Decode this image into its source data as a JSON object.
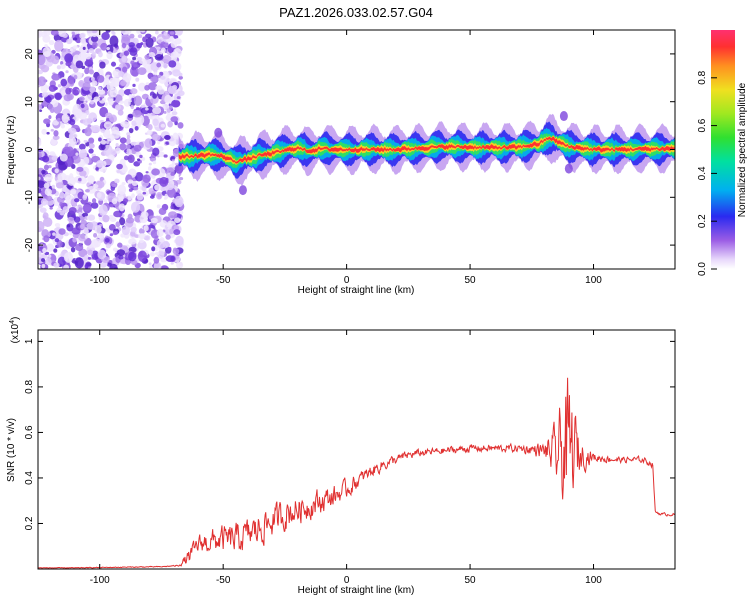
{
  "figure": {
    "title": "PAZ1.2026.033.02.57.G04"
  },
  "chart_data": [
    {
      "type": "heatmap",
      "xlabel": "Height of straight line (km)",
      "ylabel": "Frequency (Hz)",
      "xlim": [
        -125,
        133
      ],
      "ylim": [
        -25,
        25
      ],
      "xticks": [
        -100,
        -50,
        0,
        50,
        100
      ],
      "yticks": [
        -20,
        -10,
        0,
        10,
        20
      ],
      "colorbar": {
        "label": "Normalized spectral amplitude",
        "range": [
          0,
          1
        ],
        "ticks": [
          0.0,
          0.2,
          0.4,
          0.6,
          0.8
        ]
      },
      "ridge": {
        "x": [
          -68,
          -60,
          -55,
          -50,
          -45,
          -40,
          -35,
          -30,
          -25,
          -20,
          -15,
          -10,
          -5,
          0,
          10,
          20,
          30,
          40,
          50,
          60,
          70,
          78,
          82,
          86,
          90,
          95,
          100,
          110,
          120,
          133
        ],
        "frequency": [
          -1.5,
          -1.3,
          -1.0,
          -1.5,
          -2.5,
          -2.0,
          -1.2,
          -0.8,
          -0.2,
          0.3,
          -0.3,
          0.2,
          0.0,
          0.0,
          0.0,
          0.0,
          0.3,
          0.6,
          0.5,
          0.4,
          0.5,
          1.2,
          2.5,
          1.5,
          0.6,
          0.3,
          0.0,
          0.0,
          0.1,
          0.2
        ]
      },
      "noise_region_x": [
        -125,
        -67
      ]
    },
    {
      "type": "line",
      "xlabel": "Height of straight line (km)",
      "ylabel": "SNR (10 * v/v)",
      "yscale_label": "(x10",
      "yscale_exp": "4",
      "yscale_close": ")",
      "xlim": [
        -125,
        133
      ],
      "ylim": [
        0.0,
        1.05
      ],
      "xticks": [
        -100,
        -50,
        0,
        50,
        100
      ],
      "yticks": [
        0.2,
        0.4,
        0.6,
        0.8,
        1.0
      ],
      "series_color": "#e03030",
      "series": [
        {
          "x": [
            -125,
            -110,
            -90,
            -75,
            -68,
            -64,
            -60,
            -55,
            -50,
            -45,
            -40,
            -35,
            -30,
            -25,
            -20,
            -15,
            -10,
            -5,
            0,
            5,
            10,
            15,
            20,
            25,
            30,
            40,
            50,
            60,
            70,
            80,
            85,
            88,
            90,
            92,
            95,
            100,
            110,
            120,
            124,
            125,
            128,
            133
          ],
          "y": [
            0.005,
            0.005,
            0.008,
            0.01,
            0.015,
            0.05,
            0.11,
            0.12,
            0.13,
            0.13,
            0.15,
            0.18,
            0.21,
            0.24,
            0.26,
            0.28,
            0.3,
            0.32,
            0.35,
            0.39,
            0.43,
            0.46,
            0.48,
            0.5,
            0.51,
            0.52,
            0.53,
            0.53,
            0.53,
            0.52,
            0.5,
            0.52,
            0.5,
            0.52,
            0.5,
            0.49,
            0.48,
            0.48,
            0.46,
            0.25,
            0.24,
            0.24
          ],
          "noise_amplitude": [
            0.002,
            0.002,
            0.003,
            0.003,
            0.004,
            0.05,
            0.06,
            0.08,
            0.09,
            0.1,
            0.1,
            0.11,
            0.1,
            0.1,
            0.09,
            0.09,
            0.08,
            0.07,
            0.06,
            0.05,
            0.04,
            0.04,
            0.03,
            0.03,
            0.025,
            0.025,
            0.025,
            0.025,
            0.025,
            0.05,
            0.2,
            0.38,
            0.48,
            0.3,
            0.1,
            0.03,
            0.02,
            0.02,
            0.02,
            0.01,
            0.01,
            0.01
          ]
        }
      ]
    }
  ]
}
